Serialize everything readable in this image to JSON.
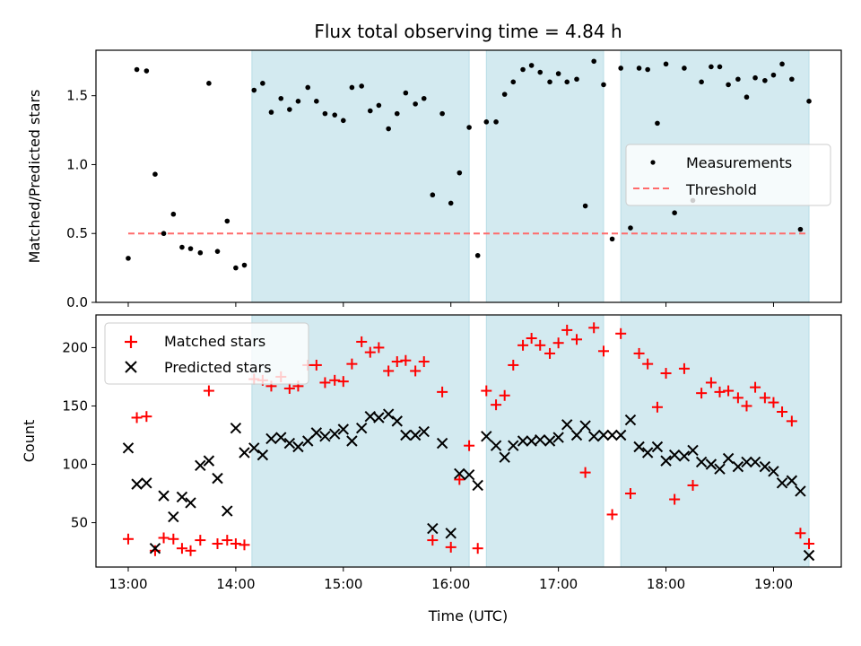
{
  "chart_data": {
    "type": "scatter",
    "title": "Flux total observing time = 4.84 h",
    "xlabel": "Time (UTC)",
    "x_ticks": [
      "13:00",
      "14:00",
      "15:00",
      "16:00",
      "17:00",
      "18:00",
      "19:00"
    ],
    "x_range_hours": [
      12.7,
      19.63
    ],
    "shaded_intervals_hours": [
      [
        14.15,
        16.17
      ],
      [
        16.33,
        17.42
      ],
      [
        17.58,
        19.33
      ]
    ],
    "shade_color": "#d3eaf0",
    "top_panel": {
      "ylabel": "Matched/Predicted stars",
      "ylim": [
        0.0,
        1.83
      ],
      "y_ticks": [
        "0.0",
        "0.5",
        "1.0",
        "1.5"
      ],
      "legend_position": "center-right",
      "threshold": 0.5,
      "series": [
        {
          "name": "Measurements",
          "color": "#000000",
          "marker": "dot",
          "points": [
            [
              13.0,
              0.32
            ],
            [
              13.08,
              1.69
            ],
            [
              13.17,
              1.68
            ],
            [
              13.25,
              0.93
            ],
            [
              13.33,
              0.5
            ],
            [
              13.42,
              0.64
            ],
            [
              13.5,
              0.4
            ],
            [
              13.58,
              0.39
            ],
            [
              13.67,
              0.36
            ],
            [
              13.75,
              1.59
            ],
            [
              13.83,
              0.37
            ],
            [
              13.92,
              0.59
            ],
            [
              14.0,
              0.25
            ],
            [
              14.08,
              0.27
            ],
            [
              14.17,
              1.54
            ],
            [
              14.25,
              1.59
            ],
            [
              14.33,
              1.38
            ],
            [
              14.42,
              1.48
            ],
            [
              14.5,
              1.4
            ],
            [
              14.58,
              1.46
            ],
            [
              14.67,
              1.56
            ],
            [
              14.75,
              1.46
            ],
            [
              14.83,
              1.37
            ],
            [
              14.92,
              1.36
            ],
            [
              15.0,
              1.32
            ],
            [
              15.08,
              1.56
            ],
            [
              15.17,
              1.57
            ],
            [
              15.25,
              1.39
            ],
            [
              15.33,
              1.43
            ],
            [
              15.42,
              1.26
            ],
            [
              15.5,
              1.37
            ],
            [
              15.58,
              1.52
            ],
            [
              15.67,
              1.44
            ],
            [
              15.75,
              1.48
            ],
            [
              15.83,
              0.78
            ],
            [
              15.92,
              1.37
            ],
            [
              16.0,
              0.72
            ],
            [
              16.08,
              0.94
            ],
            [
              16.17,
              1.27
            ],
            [
              16.25,
              0.34
            ],
            [
              16.33,
              1.31
            ],
            [
              16.42,
              1.31
            ],
            [
              16.5,
              1.51
            ],
            [
              16.58,
              1.6
            ],
            [
              16.67,
              1.69
            ],
            [
              16.75,
              1.72
            ],
            [
              16.83,
              1.67
            ],
            [
              16.92,
              1.6
            ],
            [
              17.0,
              1.66
            ],
            [
              17.08,
              1.6
            ],
            [
              17.17,
              1.62
            ],
            [
              17.25,
              0.7
            ],
            [
              17.33,
              1.75
            ],
            [
              17.42,
              1.58
            ],
            [
              17.5,
              0.46
            ],
            [
              17.58,
              1.7
            ],
            [
              17.67,
              0.54
            ],
            [
              17.75,
              1.7
            ],
            [
              17.83,
              1.69
            ],
            [
              17.92,
              1.3
            ],
            [
              18.0,
              1.73
            ],
            [
              18.08,
              0.65
            ],
            [
              18.17,
              1.7
            ],
            [
              18.25,
              0.74
            ],
            [
              18.33,
              1.6
            ],
            [
              18.42,
              1.71
            ],
            [
              18.5,
              1.71
            ],
            [
              18.58,
              1.58
            ],
            [
              18.67,
              1.62
            ],
            [
              18.75,
              1.49
            ],
            [
              18.83,
              1.63
            ],
            [
              18.92,
              1.61
            ],
            [
              19.0,
              1.65
            ],
            [
              19.08,
              1.73
            ],
            [
              19.17,
              1.62
            ],
            [
              19.25,
              0.53
            ],
            [
              19.33,
              1.46
            ]
          ]
        },
        {
          "name": "Threshold",
          "color": "#ff6b6b",
          "marker": "dashed-line",
          "points": [
            [
              13.0,
              0.5
            ],
            [
              19.33,
              0.5
            ]
          ]
        }
      ]
    },
    "bottom_panel": {
      "ylabel": "Count",
      "ylim": [
        12,
        228
      ],
      "y_ticks": [
        "50",
        "100",
        "150",
        "200"
      ],
      "legend_position": "upper-left",
      "series": [
        {
          "name": "Matched stars",
          "color": "#ff0000",
          "marker": "plus",
          "points": [
            [
              13.0,
              36
            ],
            [
              13.08,
              140
            ],
            [
              13.17,
              141
            ],
            [
              13.25,
              26
            ],
            [
              13.33,
              37
            ],
            [
              13.42,
              36
            ],
            [
              13.5,
              28
            ],
            [
              13.58,
              26
            ],
            [
              13.67,
              35
            ],
            [
              13.75,
              163
            ],
            [
              13.83,
              32
            ],
            [
              13.92,
              35
            ],
            [
              14.0,
              32
            ],
            [
              14.08,
              31
            ],
            [
              14.17,
              173
            ],
            [
              14.25,
              172
            ],
            [
              14.33,
              167
            ],
            [
              14.42,
              175
            ],
            [
              14.5,
              165
            ],
            [
              14.58,
              167
            ],
            [
              14.67,
              185
            ],
            [
              14.75,
              185
            ],
            [
              14.83,
              170
            ],
            [
              14.92,
              172
            ],
            [
              15.0,
              171
            ],
            [
              15.08,
              186
            ],
            [
              15.17,
              205
            ],
            [
              15.25,
              196
            ],
            [
              15.33,
              200
            ],
            [
              15.42,
              180
            ],
            [
              15.5,
              188
            ],
            [
              15.58,
              189
            ],
            [
              15.67,
              180
            ],
            [
              15.75,
              188
            ],
            [
              15.83,
              35
            ],
            [
              15.92,
              162
            ],
            [
              16.0,
              29
            ],
            [
              16.08,
              87
            ],
            [
              16.17,
              116
            ],
            [
              16.25,
              28
            ],
            [
              16.33,
              163
            ],
            [
              16.42,
              151
            ],
            [
              16.5,
              159
            ],
            [
              16.58,
              185
            ],
            [
              16.67,
              202
            ],
            [
              16.75,
              208
            ],
            [
              16.83,
              202
            ],
            [
              16.92,
              195
            ],
            [
              17.0,
              204
            ],
            [
              17.08,
              215
            ],
            [
              17.17,
              207
            ],
            [
              17.25,
              93
            ],
            [
              17.33,
              217
            ],
            [
              17.42,
              197
            ],
            [
              17.5,
              57
            ],
            [
              17.58,
              212
            ],
            [
              17.67,
              75
            ],
            [
              17.75,
              195
            ],
            [
              17.83,
              186
            ],
            [
              17.92,
              149
            ],
            [
              18.0,
              178
            ],
            [
              18.08,
              70
            ],
            [
              18.17,
              182
            ],
            [
              18.25,
              82
            ],
            [
              18.33,
              161
            ],
            [
              18.42,
              170
            ],
            [
              18.5,
              162
            ],
            [
              18.58,
              163
            ],
            [
              18.67,
              157
            ],
            [
              18.75,
              150
            ],
            [
              18.83,
              166
            ],
            [
              18.92,
              157
            ],
            [
              19.0,
              153
            ],
            [
              19.08,
              145
            ],
            [
              19.17,
              137
            ],
            [
              19.25,
              41
            ],
            [
              19.33,
              32
            ]
          ]
        },
        {
          "name": "Predicted stars",
          "color": "#000000",
          "marker": "x",
          "points": [
            [
              13.0,
              114
            ],
            [
              13.08,
              83
            ],
            [
              13.17,
              84
            ],
            [
              13.25,
              28
            ],
            [
              13.33,
              73
            ],
            [
              13.42,
              55
            ],
            [
              13.5,
              72
            ],
            [
              13.58,
              67
            ],
            [
              13.67,
              99
            ],
            [
              13.75,
              103
            ],
            [
              13.83,
              88
            ],
            [
              13.92,
              60
            ],
            [
              14.0,
              131
            ],
            [
              14.08,
              110
            ],
            [
              14.17,
              114
            ],
            [
              14.25,
              108
            ],
            [
              14.33,
              122
            ],
            [
              14.42,
              123
            ],
            [
              14.5,
              118
            ],
            [
              14.58,
              115
            ],
            [
              14.67,
              120
            ],
            [
              14.75,
              127
            ],
            [
              14.83,
              124
            ],
            [
              14.92,
              126
            ],
            [
              15.0,
              130
            ],
            [
              15.08,
              120
            ],
            [
              15.17,
              131
            ],
            [
              15.25,
              141
            ],
            [
              15.33,
              140
            ],
            [
              15.42,
              143
            ],
            [
              15.5,
              137
            ],
            [
              15.58,
              125
            ],
            [
              15.67,
              125
            ],
            [
              15.75,
              128
            ],
            [
              15.83,
              45
            ],
            [
              15.92,
              118
            ],
            [
              16.0,
              41
            ],
            [
              16.08,
              92
            ],
            [
              16.17,
              91
            ],
            [
              16.25,
              82
            ],
            [
              16.33,
              124
            ],
            [
              16.42,
              116
            ],
            [
              16.5,
              106
            ],
            [
              16.58,
              116
            ],
            [
              16.67,
              120
            ],
            [
              16.75,
              120
            ],
            [
              16.83,
              121
            ],
            [
              16.92,
              120
            ],
            [
              17.0,
              123
            ],
            [
              17.08,
              134
            ],
            [
              17.17,
              125
            ],
            [
              17.25,
              133
            ],
            [
              17.33,
              124
            ],
            [
              17.42,
              125
            ],
            [
              17.5,
              125
            ],
            [
              17.58,
              125
            ],
            [
              17.67,
              138
            ],
            [
              17.75,
              115
            ],
            [
              17.83,
              110
            ],
            [
              17.92,
              115
            ],
            [
              18.0,
              103
            ],
            [
              18.08,
              108
            ],
            [
              18.17,
              107
            ],
            [
              18.25,
              112
            ],
            [
              18.33,
              102
            ],
            [
              18.42,
              100
            ],
            [
              18.5,
              96
            ],
            [
              18.58,
              105
            ],
            [
              18.67,
              98
            ],
            [
              18.75,
              102
            ],
            [
              18.83,
              102
            ],
            [
              18.92,
              98
            ],
            [
              19.0,
              94
            ],
            [
              19.08,
              84
            ],
            [
              19.17,
              86
            ],
            [
              19.25,
              77
            ],
            [
              19.33,
              22
            ]
          ]
        }
      ]
    }
  }
}
